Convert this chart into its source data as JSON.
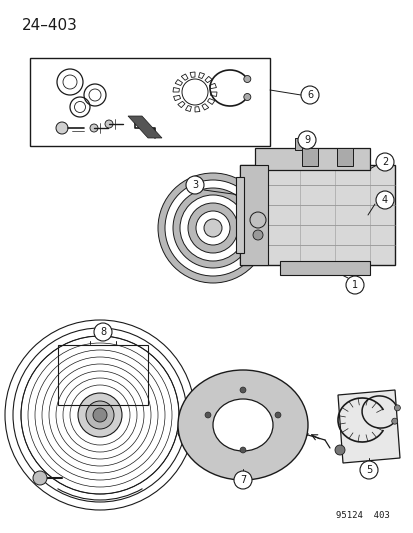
{
  "title": "24–403",
  "footer": "95124  403",
  "bg_color": "#ffffff",
  "line_color": "#1a1a1a",
  "title_fontsize": 11,
  "footer_fontsize": 6.5
}
